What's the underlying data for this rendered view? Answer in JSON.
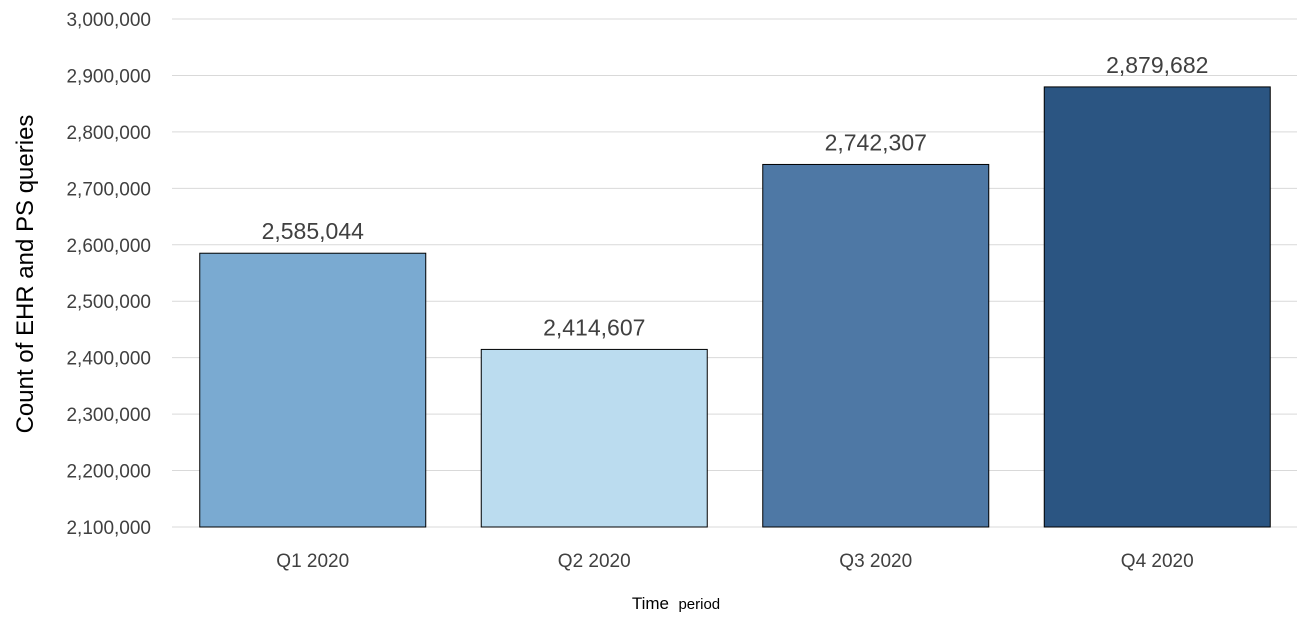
{
  "chart_data": {
    "type": "bar",
    "title": "",
    "categories": [
      "Q1 2020",
      "Q2 2020",
      "Q3 2020",
      "Q4 2020"
    ],
    "values": [
      2585044,
      2414607,
      2742307,
      2879682
    ],
    "data_labels": [
      "2,585,044",
      "2,414,607",
      "2,742,307",
      "2,879,682"
    ],
    "bar_colors": [
      "#7aaad1",
      "#bbdcef",
      "#4e78a5",
      "#2b5582"
    ],
    "ylabel": "Count of EHR and PS queries",
    "xlabel": "Time period",
    "xlabel_parts": [
      "Time",
      "period"
    ],
    "ylim": [
      2100000,
      3000000
    ],
    "yticks": [
      2100000,
      2200000,
      2300000,
      2400000,
      2500000,
      2600000,
      2700000,
      2800000,
      2900000,
      3000000
    ],
    "ytick_labels": [
      "2,100,000",
      "2,200,000",
      "2,300,000",
      "2,400,000",
      "2,500,000",
      "2,600,000",
      "2,700,000",
      "2,800,000",
      "2,900,000",
      "3,000,000"
    ],
    "grid": true,
    "legend": "none"
  }
}
